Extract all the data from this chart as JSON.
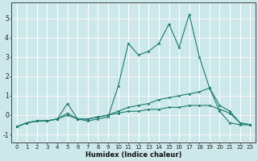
{
  "xlabel": "Humidex (Indice chaleur)",
  "xlim": [
    -0.5,
    23.5
  ],
  "ylim": [
    -1.4,
    5.8
  ],
  "x": [
    0,
    1,
    2,
    3,
    4,
    5,
    6,
    7,
    8,
    9,
    10,
    11,
    12,
    13,
    14,
    15,
    16,
    17,
    18,
    19,
    20,
    21,
    22,
    23
  ],
  "line1": [
    -0.6,
    -0.4,
    -0.3,
    -0.3,
    -0.2,
    0.6,
    -0.2,
    -0.3,
    -0.2,
    -0.1,
    1.5,
    3.7,
    3.1,
    3.3,
    3.7,
    4.7,
    3.5,
    5.2,
    3.0,
    1.4,
    0.2,
    -0.4,
    -0.5,
    -0.5
  ],
  "line2": [
    -0.6,
    -0.4,
    -0.3,
    -0.3,
    -0.2,
    0.1,
    -0.2,
    -0.2,
    -0.1,
    0.0,
    0.2,
    0.4,
    0.5,
    0.6,
    0.8,
    0.9,
    1.0,
    1.1,
    1.2,
    1.4,
    0.5,
    0.2,
    -0.4,
    -0.5
  ],
  "line3": [
    -0.6,
    -0.4,
    -0.3,
    -0.3,
    -0.2,
    0.0,
    -0.2,
    -0.2,
    -0.1,
    0.0,
    0.1,
    0.2,
    0.2,
    0.3,
    0.3,
    0.4,
    0.4,
    0.5,
    0.5,
    0.5,
    0.3,
    0.1,
    -0.4,
    -0.5
  ],
  "line_color": "#1a7a6e",
  "bg_color": "#cde8ea",
  "grid_color_major": "#f0c8c8",
  "grid_color_minor": "#ffffff",
  "yticks": [
    -1,
    0,
    1,
    2,
    3,
    4,
    5
  ],
  "xticks": [
    0,
    1,
    2,
    3,
    4,
    5,
    6,
    7,
    8,
    9,
    10,
    11,
    12,
    13,
    14,
    15,
    16,
    17,
    18,
    19,
    20,
    21,
    22,
    23
  ],
  "tick_fontsize": 5.0,
  "xlabel_fontsize": 6.0
}
